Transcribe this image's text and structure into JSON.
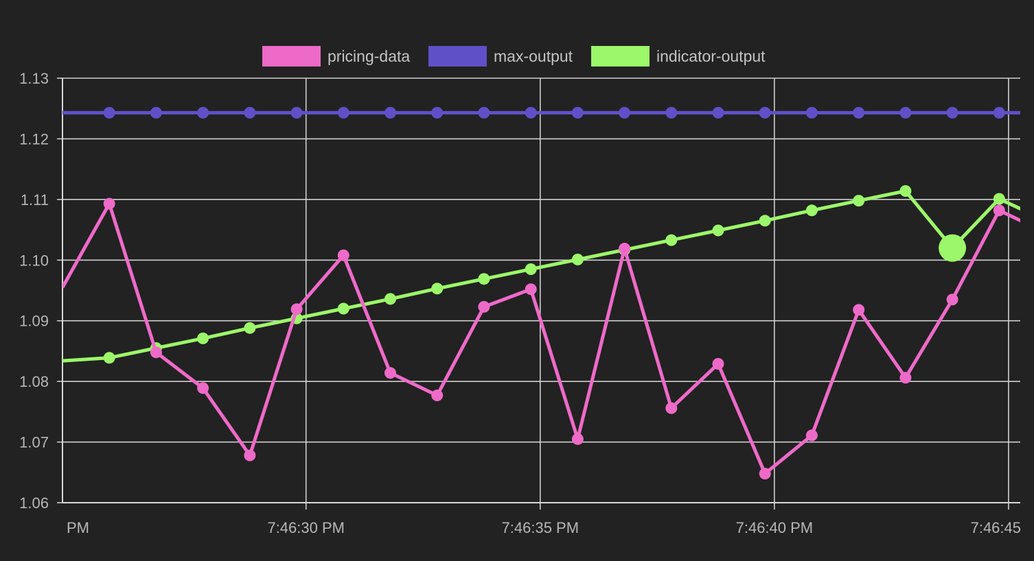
{
  "chart_data": {
    "type": "line",
    "title": "",
    "xlabel": "",
    "ylabel": "",
    "ylim": [
      1.06,
      1.13
    ],
    "yticks": [
      "1.13",
      "1.12",
      "1.11",
      "1.10",
      "1.09",
      "1.08",
      "1.07",
      "1.06"
    ],
    "xticks": [
      {
        "label": "PM",
        "t": 25
      },
      {
        "label": "7:46:30 PM",
        "t": 30
      },
      {
        "label": "7:46:35 PM",
        "t": 35
      },
      {
        "label": "7:46:40 PM",
        "t": 40
      },
      {
        "label": "7:46:45",
        "t": 45
      }
    ],
    "x": [
      25.8,
      26.8,
      27.8,
      28.8,
      29.8,
      30.8,
      31.8,
      32.8,
      33.8,
      34.8,
      35.8,
      36.8,
      37.8,
      38.8,
      39.8,
      40.8,
      41.8,
      42.8,
      43.8,
      44.8
    ],
    "xlim": [
      24.8,
      45.25
    ],
    "grid": true,
    "legend_position": "top",
    "series": [
      {
        "name": "pricing-data",
        "color": "#ee6ac8",
        "lead_in": 1.0955,
        "trail_out": 1.1045,
        "values": [
          1.1093,
          1.0848,
          1.0789,
          1.0678,
          1.0919,
          1.1008,
          1.0814,
          1.0777,
          1.0923,
          1.0952,
          1.0705,
          1.1019,
          1.0756,
          1.0829,
          1.0648,
          1.0711,
          1.0918,
          1.0806,
          1.0935,
          1.1082
        ]
      },
      {
        "name": "max-output",
        "color": "#6050c8",
        "lead_in": 1.1243,
        "trail_out": 1.1243,
        "values": [
          1.1243,
          1.1243,
          1.1243,
          1.1243,
          1.1243,
          1.1243,
          1.1243,
          1.1243,
          1.1243,
          1.1243,
          1.1243,
          1.1243,
          1.1243,
          1.1243,
          1.1243,
          1.1243,
          1.1243,
          1.1243,
          1.1243,
          1.1243
        ]
      },
      {
        "name": "indicator-output",
        "color": "#9cf76a",
        "lead_in": 1.0834,
        "trail_out": 1.1065,
        "highlight_index": 18,
        "values": [
          1.0839,
          1.0855,
          1.0871,
          1.0888,
          1.0904,
          1.092,
          1.0936,
          1.0953,
          1.0969,
          1.0985,
          1.1001,
          1.1017,
          1.1033,
          1.1049,
          1.1065,
          1.1082,
          1.1098,
          1.1114,
          1.102,
          1.1101
        ]
      }
    ]
  }
}
